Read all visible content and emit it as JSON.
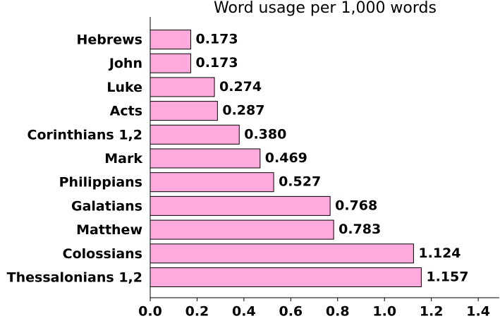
{
  "chart_data": {
    "type": "barh",
    "title": "Word usage per 1,000 words",
    "categories": [
      "Hebrews",
      "John",
      "Luke",
      "Acts",
      "Corinthians 1,2",
      "Mark",
      "Philippians",
      "Galatians",
      "Matthew",
      "Colossians",
      "Thessalonians 1,2"
    ],
    "values": [
      0.173,
      0.173,
      0.274,
      0.287,
      0.38,
      0.469,
      0.527,
      0.768,
      0.783,
      1.124,
      1.157
    ],
    "value_labels": [
      "0.173",
      "0.173",
      "0.274",
      "0.287",
      "0.380",
      "0.469",
      "0.527",
      "0.768",
      "0.783",
      "1.124",
      "1.157"
    ],
    "color": "#ffaadd",
    "xlim": [
      0,
      1.49
    ],
    "xticks": [
      {
        "value": 0,
        "label": "0.0"
      },
      0.2,
      0.4,
      0.6,
      0.8,
      {
        "value": 1,
        "label": "1.0"
      },
      1.2,
      1.4
    ]
  }
}
